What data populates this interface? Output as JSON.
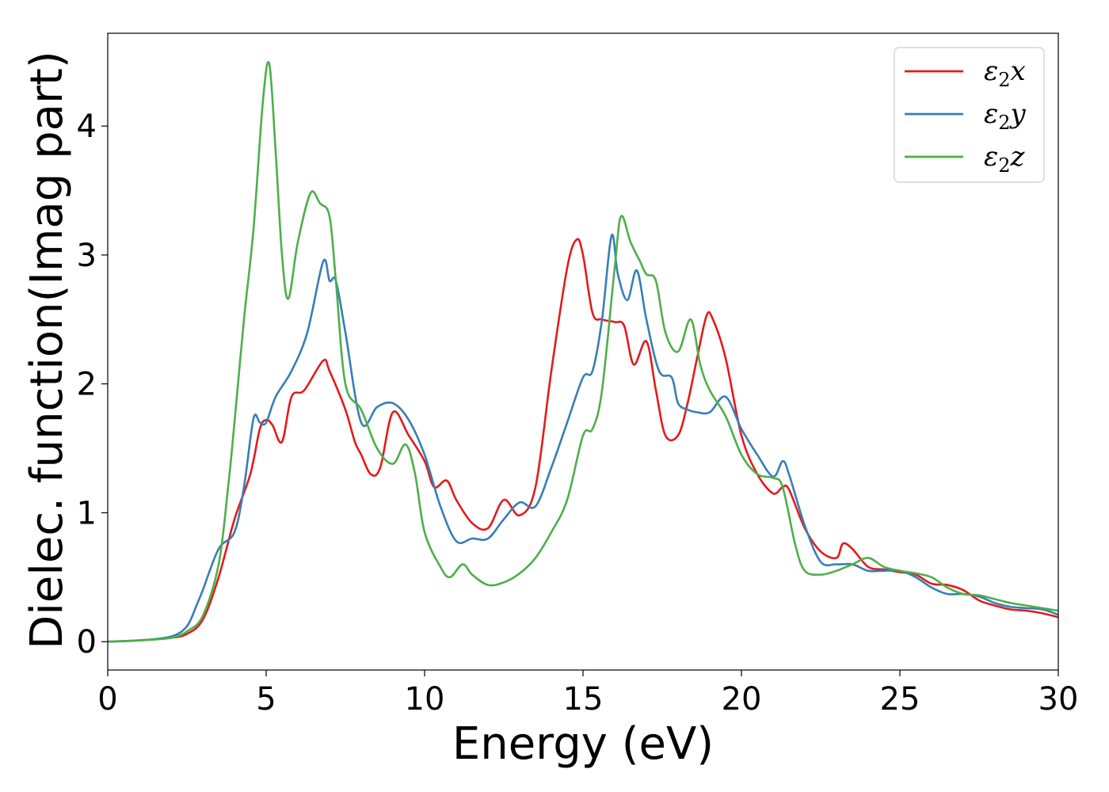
{
  "chart_data": {
    "type": "line",
    "title": "",
    "xlabel": "Energy (eV)",
    "ylabel": "Dielec. function(Imag part)",
    "xlim": [
      0,
      30
    ],
    "ylim": [
      -0.22,
      4.72
    ],
    "xticks": [
      0,
      5,
      10,
      15,
      20,
      25,
      30
    ],
    "xtick_labels": [
      "0",
      "5",
      "10",
      "15",
      "20",
      "25",
      "30"
    ],
    "yticks": [
      0,
      1,
      2,
      3,
      4
    ],
    "ytick_labels": [
      "0",
      "1",
      "2",
      "3",
      "4"
    ],
    "grid": false,
    "legend_position": "top-right",
    "series": [
      {
        "name": "ε2x",
        "legend_base": "ε",
        "legend_sub": "2",
        "legend_var": "x",
        "color": "#e41a1c",
        "x": [
          0,
          1,
          2,
          2.5,
          3,
          3.5,
          4,
          4.5,
          4.8,
          5,
          5.2,
          5.5,
          5.8,
          6.2,
          6.8,
          7,
          7.5,
          7.8,
          8,
          8.3,
          8.6,
          9,
          9.5,
          10,
          10.3,
          10.7,
          11,
          11.5,
          12,
          12.5,
          13,
          13.5,
          14,
          14.5,
          14.8,
          15,
          15.3,
          15.6,
          16,
          16.3,
          16.6,
          17,
          17.3,
          17.6,
          18,
          18.3,
          18.6,
          18.9,
          19.1,
          19.5,
          20,
          20.5,
          21,
          21.3,
          21.5,
          22,
          22.5,
          23,
          23.2,
          23.5,
          24,
          24.5,
          25,
          25.5,
          26,
          26.5,
          27,
          27.5,
          28,
          28.5,
          29,
          29.5,
          30
        ],
        "y": [
          0,
          0.01,
          0.03,
          0.06,
          0.17,
          0.5,
          0.95,
          1.3,
          1.65,
          1.72,
          1.68,
          1.55,
          1.9,
          1.95,
          2.18,
          2.1,
          1.8,
          1.55,
          1.45,
          1.3,
          1.35,
          1.78,
          1.6,
          1.4,
          1.2,
          1.25,
          1.1,
          0.92,
          0.88,
          1.1,
          0.98,
          1.2,
          2.1,
          2.9,
          3.12,
          3,
          2.55,
          2.5,
          2.48,
          2.45,
          2.15,
          2.33,
          1.95,
          1.6,
          1.6,
          1.85,
          2.2,
          2.53,
          2.5,
          2.2,
          1.6,
          1.3,
          1.15,
          1.2,
          1.18,
          0.88,
          0.7,
          0.65,
          0.76,
          0.72,
          0.58,
          0.56,
          0.54,
          0.52,
          0.45,
          0.44,
          0.4,
          0.32,
          0.28,
          0.25,
          0.24,
          0.22,
          0.19
        ]
      },
      {
        "name": "ε2y",
        "legend_base": "ε",
        "legend_sub": "2",
        "legend_var": "y",
        "color": "#377eb8",
        "x": [
          0,
          1,
          2,
          2.5,
          2.8,
          3,
          3.5,
          4,
          4.3,
          4.6,
          4.8,
          5,
          5.3,
          5.8,
          6.3,
          6.8,
          7,
          7.2,
          7.5,
          8,
          8.5,
          9,
          9.5,
          10,
          10.5,
          11,
          11.5,
          12,
          12.5,
          13,
          13.5,
          14,
          14.5,
          15,
          15.3,
          15.6,
          15.9,
          16.1,
          16.4,
          16.7,
          17,
          17.4,
          17.8,
          18,
          18.3,
          18.6,
          19,
          19.5,
          20,
          20.5,
          21,
          21.3,
          21.5,
          22,
          22.5,
          23,
          23.5,
          24,
          24.5,
          25,
          25.5,
          26,
          26.5,
          27,
          27.5,
          28,
          28.5,
          29,
          29.5,
          30
        ],
        "y": [
          0,
          0.01,
          0.04,
          0.12,
          0.28,
          0.4,
          0.72,
          0.85,
          1.2,
          1.73,
          1.7,
          1.7,
          1.9,
          2.1,
          2.4,
          2.95,
          2.8,
          2.8,
          2.4,
          1.7,
          1.82,
          1.85,
          1.72,
          1.45,
          1.05,
          0.78,
          0.8,
          0.8,
          0.95,
          1.08,
          1.05,
          1.35,
          1.7,
          2.05,
          2.1,
          2.5,
          3.15,
          2.85,
          2.65,
          2.88,
          2.5,
          2.1,
          2.05,
          1.85,
          1.8,
          1.78,
          1.78,
          1.9,
          1.65,
          1.45,
          1.28,
          1.4,
          1.3,
          0.9,
          0.62,
          0.6,
          0.6,
          0.55,
          0.55,
          0.55,
          0.5,
          0.42,
          0.37,
          0.37,
          0.35,
          0.3,
          0.27,
          0.26,
          0.25,
          0.21
        ]
      },
      {
        "name": "ε2z",
        "legend_base": "ε",
        "legend_sub": "2",
        "legend_var": "z",
        "color": "#4daf4a",
        "x": [
          0,
          1,
          2,
          2.5,
          3,
          3.5,
          3.8,
          4,
          4.3,
          4.6,
          4.9,
          5.1,
          5.3,
          5.5,
          5.7,
          6,
          6.4,
          6.7,
          7,
          7.2,
          7.5,
          8,
          8.5,
          9,
          9.4,
          9.7,
          10,
          10.5,
          10.8,
          11.2,
          11.5,
          12,
          12.5,
          13,
          13.5,
          14,
          14.5,
          15,
          15.3,
          15.6,
          16,
          16.2,
          16.5,
          16.8,
          17,
          17.3,
          17.6,
          18,
          18.4,
          18.7,
          19,
          19.5,
          20,
          20.5,
          21,
          21.3,
          21.7,
          22,
          22.5,
          23,
          23.5,
          24,
          24.5,
          25,
          25.5,
          26,
          26.5,
          27,
          27.5,
          28,
          28.5,
          29,
          29.5,
          30
        ],
        "y": [
          0,
          0.01,
          0.03,
          0.08,
          0.2,
          0.6,
          1.2,
          1.7,
          2.5,
          3.2,
          4.2,
          4.48,
          3.8,
          3.0,
          2.66,
          3.1,
          3.48,
          3.4,
          3.3,
          2.8,
          2.0,
          1.8,
          1.5,
          1.38,
          1.53,
          1.3,
          0.85,
          0.58,
          0.5,
          0.6,
          0.52,
          0.44,
          0.46,
          0.53,
          0.65,
          0.85,
          1.1,
          1.6,
          1.65,
          1.95,
          2.9,
          3.3,
          3.1,
          2.95,
          2.85,
          2.8,
          2.4,
          2.25,
          2.5,
          2.15,
          1.95,
          1.75,
          1.45,
          1.3,
          1.27,
          1.2,
          0.75,
          0.55,
          0.52,
          0.55,
          0.6,
          0.65,
          0.58,
          0.55,
          0.53,
          0.5,
          0.42,
          0.37,
          0.36,
          0.33,
          0.3,
          0.28,
          0.26,
          0.24
        ]
      }
    ]
  }
}
